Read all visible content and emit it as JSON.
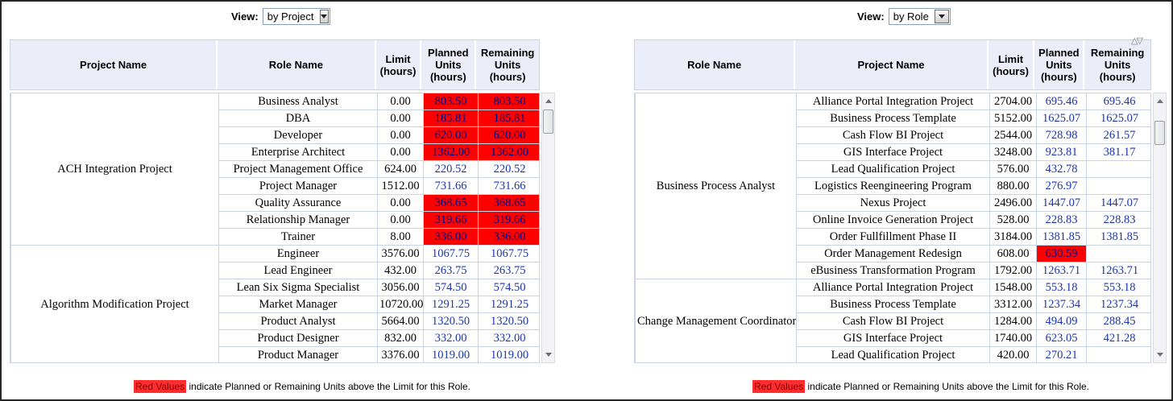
{
  "colors": {
    "over_limit_bg": "#ff0000",
    "over_limit_text": "#000080",
    "value_text": "#1a35b0",
    "header_bg": "#ebeef8",
    "note_highlight_bg": "#ff2d2d",
    "note_highlight_text": "#8b0000"
  },
  "left_panel": {
    "view_label": "View:",
    "view_value": "by Project",
    "columns": [
      "Project Name",
      "Role Name",
      "Limit (hours)",
      "Planned Units (hours)",
      "Remaining Units (hours)"
    ],
    "note_highlight": "Red Values",
    "note_text": "indicate Planned or Remaining Units above the Limit for this Role.",
    "groups": [
      {
        "name": "ACH Integration Project",
        "rows": [
          {
            "label": "Business Analyst",
            "limit": "0.00",
            "planned": "803.50",
            "remaining": "803.50",
            "planned_over": true,
            "remaining_over": true
          },
          {
            "label": "DBA",
            "limit": "0.00",
            "planned": "185.81",
            "remaining": "185.81",
            "planned_over": true,
            "remaining_over": true
          },
          {
            "label": "Developer",
            "limit": "0.00",
            "planned": "620.00",
            "remaining": "620.00",
            "planned_over": true,
            "remaining_over": true
          },
          {
            "label": "Enterprise Architect",
            "limit": "0.00",
            "planned": "1362.00",
            "remaining": "1362.00",
            "planned_over": true,
            "remaining_over": true
          },
          {
            "label": "Project Management Office",
            "limit": "624.00",
            "planned": "220.52",
            "remaining": "220.52",
            "planned_over": false,
            "remaining_over": false
          },
          {
            "label": "Project Manager",
            "limit": "1512.00",
            "planned": "731.66",
            "remaining": "731.66",
            "planned_over": false,
            "remaining_over": false
          },
          {
            "label": "Quality Assurance",
            "limit": "0.00",
            "planned": "368.65",
            "remaining": "368.65",
            "planned_over": true,
            "remaining_over": true
          },
          {
            "label": "Relationship Manager",
            "limit": "0.00",
            "planned": "319.66",
            "remaining": "319.66",
            "planned_over": true,
            "remaining_over": true
          },
          {
            "label": "Trainer",
            "limit": "8.00",
            "planned": "336.00",
            "remaining": "336.00",
            "planned_over": true,
            "remaining_over": true
          }
        ]
      },
      {
        "name": "Algorithm Modification Project",
        "rows": [
          {
            "label": "Engineer",
            "limit": "3576.00",
            "planned": "1067.75",
            "remaining": "1067.75",
            "planned_over": false,
            "remaining_over": false
          },
          {
            "label": "Lead Engineer",
            "limit": "432.00",
            "planned": "263.75",
            "remaining": "263.75",
            "planned_over": false,
            "remaining_over": false
          },
          {
            "label": "Lean Six Sigma Specialist",
            "limit": "3056.00",
            "planned": "574.50",
            "remaining": "574.50",
            "planned_over": false,
            "remaining_over": false
          },
          {
            "label": "Market Manager",
            "limit": "10720.00",
            "planned": "1291.25",
            "remaining": "1291.25",
            "planned_over": false,
            "remaining_over": false
          },
          {
            "label": "Product Analyst",
            "limit": "5664.00",
            "planned": "1320.50",
            "remaining": "1320.50",
            "planned_over": false,
            "remaining_over": false
          },
          {
            "label": "Product Designer",
            "limit": "832.00",
            "planned": "332.00",
            "remaining": "332.00",
            "planned_over": false,
            "remaining_over": false
          },
          {
            "label": "Product Manager",
            "limit": "3376.00",
            "planned": "1019.00",
            "remaining": "1019.00",
            "planned_over": false,
            "remaining_over": false
          }
        ]
      }
    ]
  },
  "right_panel": {
    "view_label": "View:",
    "view_value": "by Role",
    "columns": [
      "Role Name",
      "Project Name",
      "Limit (hours)",
      "Planned Units (hours)",
      "Remaining Units (hours)"
    ],
    "note_highlight": "Red Values",
    "note_text": "indicate Planned or Remaining Units above the Limit for this Role.",
    "groups": [
      {
        "name": "Business Process Analyst",
        "rows": [
          {
            "label": "Alliance Portal Integration Project",
            "limit": "2704.00",
            "planned": "695.46",
            "remaining": "695.46",
            "planned_over": false,
            "remaining_over": false
          },
          {
            "label": "Business Process Template",
            "limit": "5152.00",
            "planned": "1625.07",
            "remaining": "1625.07",
            "planned_over": false,
            "remaining_over": false
          },
          {
            "label": "Cash Flow BI Project",
            "limit": "2544.00",
            "planned": "728.98",
            "remaining": "261.57",
            "planned_over": false,
            "remaining_over": false
          },
          {
            "label": "GIS Interface Project",
            "limit": "3248.00",
            "planned": "923.81",
            "remaining": "381.17",
            "planned_over": false,
            "remaining_over": false
          },
          {
            "label": "Lead Qualification Project",
            "limit": "576.00",
            "planned": "432.78",
            "remaining": "",
            "planned_over": false,
            "remaining_over": false
          },
          {
            "label": "Logistics Reengineering Program",
            "limit": "880.00",
            "planned": "276.97",
            "remaining": "",
            "planned_over": false,
            "remaining_over": false
          },
          {
            "label": "Nexus Project",
            "limit": "2496.00",
            "planned": "1447.07",
            "remaining": "1447.07",
            "planned_over": false,
            "remaining_over": false
          },
          {
            "label": "Online Invoice Generation Project",
            "limit": "528.00",
            "planned": "228.83",
            "remaining": "228.83",
            "planned_over": false,
            "remaining_over": false
          },
          {
            "label": "Order Fullfillment Phase II",
            "limit": "3184.00",
            "planned": "1381.85",
            "remaining": "1381.85",
            "planned_over": false,
            "remaining_over": false
          },
          {
            "label": "Order Management Redesign",
            "limit": "608.00",
            "planned": "630.59",
            "remaining": "",
            "planned_over": true,
            "remaining_over": false
          },
          {
            "label": "eBusiness Transformation Program",
            "limit": "1792.00",
            "planned": "1263.71",
            "remaining": "1263.71",
            "planned_over": false,
            "remaining_over": false
          }
        ]
      },
      {
        "name": "Change Management Coordinator",
        "rows": [
          {
            "label": "Alliance Portal Integration Project",
            "limit": "1548.00",
            "planned": "553.18",
            "remaining": "553.18",
            "planned_over": false,
            "remaining_over": false
          },
          {
            "label": "Business Process Template",
            "limit": "3312.00",
            "planned": "1237.34",
            "remaining": "1237.34",
            "planned_over": false,
            "remaining_over": false
          },
          {
            "label": "Cash Flow BI Project",
            "limit": "1284.00",
            "planned": "494.09",
            "remaining": "288.45",
            "planned_over": false,
            "remaining_over": false
          },
          {
            "label": "GIS Interface Project",
            "limit": "1740.00",
            "planned": "623.05",
            "remaining": "421.28",
            "planned_over": false,
            "remaining_over": false
          },
          {
            "label": "Lead Qualification Project",
            "limit": "420.00",
            "planned": "270.21",
            "remaining": "",
            "planned_over": false,
            "remaining_over": false
          }
        ]
      }
    ]
  }
}
